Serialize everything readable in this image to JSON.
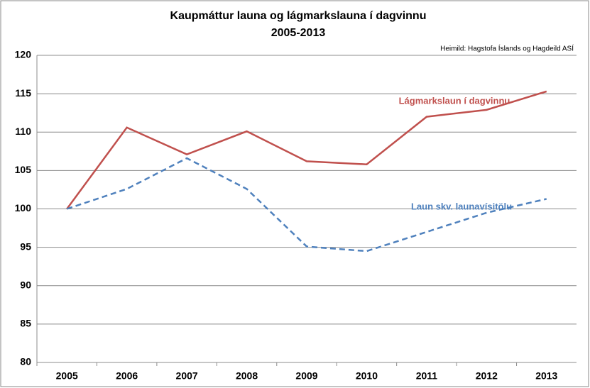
{
  "chart_data": {
    "type": "line",
    "title": "Kaupmáttur launa og lágmarkslauna í dagvinnu",
    "subtitle": "2005-2013",
    "source": "Heimild: Hagstofa Íslands og Hagdeild ASÍ",
    "categories": [
      "2005",
      "2006",
      "2007",
      "2008",
      "2009",
      "2010",
      "2011",
      "2012",
      "2013"
    ],
    "series": [
      {
        "name": "Lágmarkslaun í dagvinnu",
        "color": "#c0504d",
        "dash": false,
        "values": [
          100,
          110.6,
          107.1,
          110.1,
          106.2,
          105.8,
          112.0,
          112.9,
          115.3
        ]
      },
      {
        "name": "Laun skv. launavísitölu",
        "color": "#4f81bd",
        "dash": true,
        "values": [
          100,
          102.6,
          106.6,
          102.6,
          95.1,
          94.5,
          97.0,
          99.5,
          101.3
        ]
      }
    ],
    "ylim": [
      80,
      120
    ],
    "yticks": [
      80,
      85,
      90,
      95,
      100,
      105,
      110,
      115,
      120
    ],
    "grid": true
  }
}
